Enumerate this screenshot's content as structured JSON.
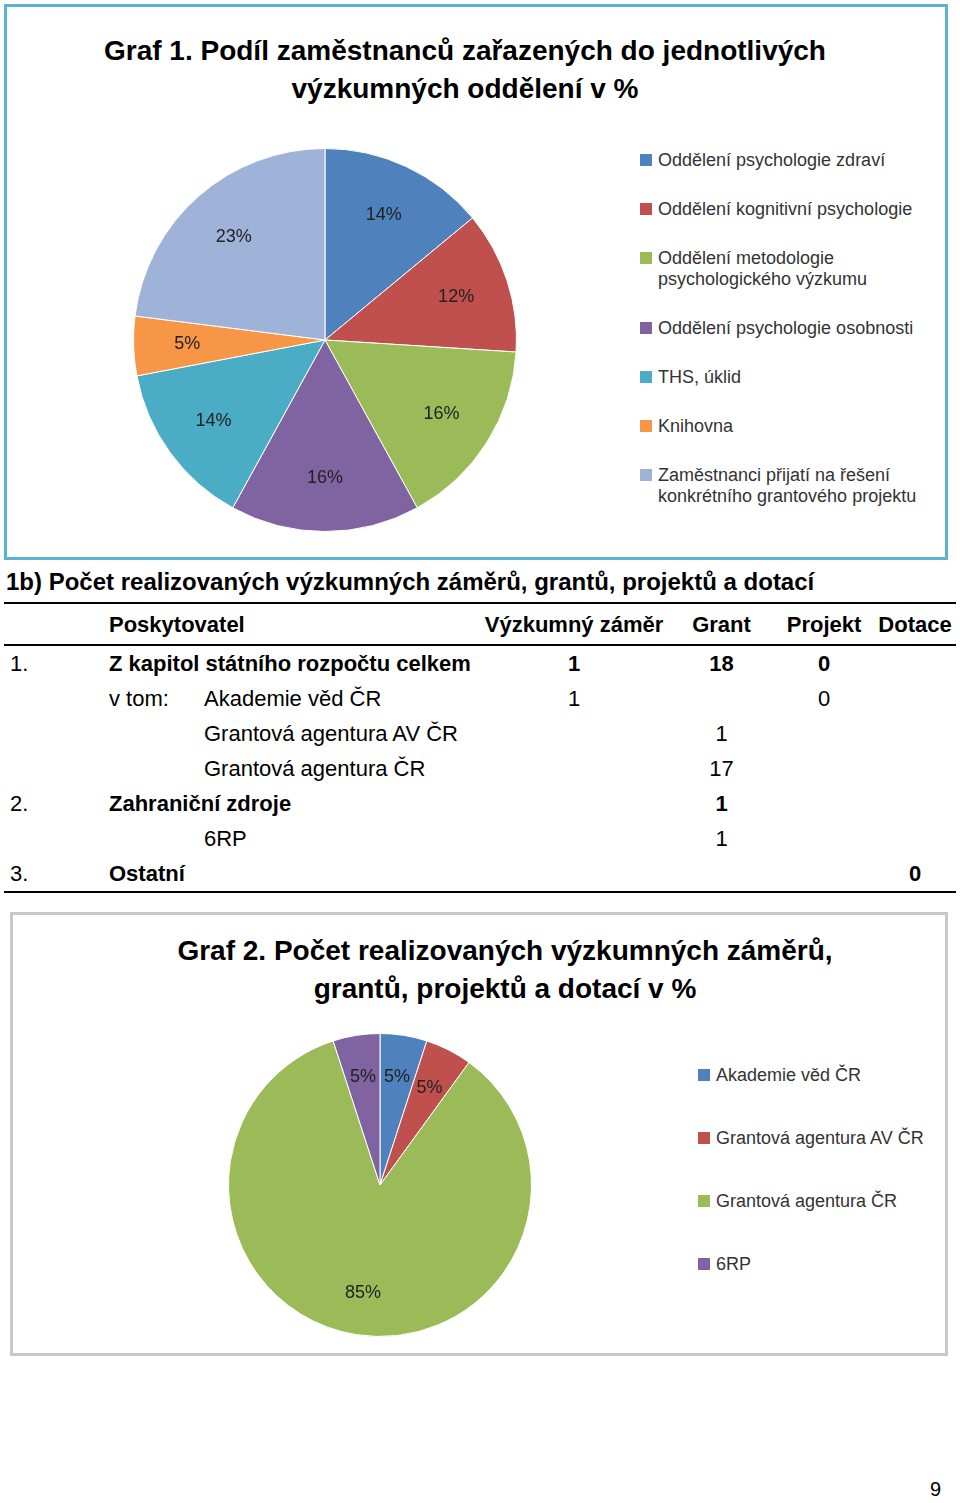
{
  "chart_data": [
    {
      "type": "pie",
      "title": "Graf 1. Podíl zaměstnanců zařazených do jednotlivých výzkumných oddělení v %",
      "categories": [
        "Oddělení psychologie zdraví",
        "Oddělení kognitivní psychologie",
        "Oddělení metodologie psychologického výzkumu",
        "Oddělení psychologie osobnosti",
        "THS, úklid",
        "Knihovna",
        "Zaměstnanci přijatí na řešení konkrétního grantového projektu"
      ],
      "values": [
        14,
        12,
        16,
        16,
        14,
        5,
        23
      ],
      "value_labels": [
        "14%",
        "12%",
        "16%",
        "16%",
        "14%",
        "5%",
        "23%"
      ],
      "colors": [
        "#4f81bd",
        "#c0504d",
        "#9bbb59",
        "#8064a2",
        "#4bacc6",
        "#f79646",
        "#9fb3d8"
      ],
      "data_labels": true,
      "legend": "right"
    },
    {
      "type": "pie",
      "title": "Graf 2. Počet realizovaných výzkumných záměrů, grantů, projektů a dotací v %",
      "categories": [
        "Akademie věd ČR",
        "Grantová agentura AV ČR",
        "Grantová agentura ČR",
        "6RP"
      ],
      "values": [
        5,
        5,
        85,
        5
      ],
      "value_labels": [
        "5%",
        "5%",
        "85%",
        "5%"
      ],
      "colors": [
        "#4f81bd",
        "#c0504d",
        "#9bbb59",
        "#8064a2"
      ],
      "data_labels": true,
      "legend": "right"
    }
  ],
  "table": {
    "title": "1b) Počet realizovaných výzkumných záměrů, grantů, projektů a dotací",
    "header": [
      "Poskytovatel",
      "Výzkumný záměr",
      "Grant",
      "Projekt",
      "Dotace"
    ],
    "rows": [
      [
        "1.",
        null,
        "Z kapitol státního rozpočtu celkem",
        1,
        18,
        0,
        null
      ],
      [
        null,
        "v tom:",
        "Akademie věd ČR",
        1,
        null,
        0,
        null
      ],
      [
        null,
        null,
        "Grantová agentura AV ČR",
        null,
        1,
        null,
        null
      ],
      [
        null,
        null,
        "Grantová agentura ČR",
        null,
        17,
        null,
        null
      ],
      [
        "2.",
        null,
        "Zahraniční zdroje",
        null,
        1,
        null,
        null
      ],
      [
        null,
        null,
        "6RP",
        null,
        1,
        null,
        null
      ],
      [
        "3.",
        null,
        "Ostatní",
        null,
        null,
        null,
        0
      ]
    ]
  },
  "page_number": 9
}
